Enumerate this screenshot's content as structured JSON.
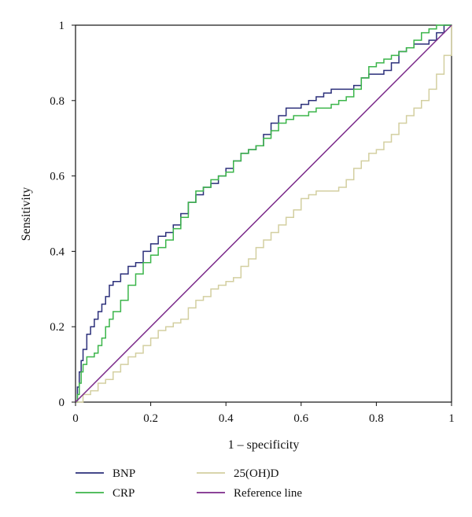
{
  "chart_data": {
    "type": "line",
    "title": "",
    "xlabel": "1 – specificity",
    "ylabel": "Sensitivity",
    "xlim": [
      0,
      1
    ],
    "ylim": [
      0,
      1
    ],
    "x_ticks": [
      "0",
      "0.2",
      "0.4",
      "0.6",
      "0.8",
      "1"
    ],
    "y_ticks": [
      "0",
      "0.2",
      "0.4",
      "0.6",
      "0.8",
      "1"
    ],
    "grid": false,
    "legend_position": "bottom",
    "series": [
      {
        "name": "BNP",
        "color": "#2b2f7a",
        "points": [
          [
            0,
            0
          ],
          [
            0.005,
            0.04
          ],
          [
            0.01,
            0.08
          ],
          [
            0.015,
            0.11
          ],
          [
            0.02,
            0.14
          ],
          [
            0.03,
            0.18
          ],
          [
            0.04,
            0.2
          ],
          [
            0.05,
            0.22
          ],
          [
            0.06,
            0.24
          ],
          [
            0.07,
            0.26
          ],
          [
            0.08,
            0.28
          ],
          [
            0.09,
            0.31
          ],
          [
            0.1,
            0.32
          ],
          [
            0.12,
            0.34
          ],
          [
            0.14,
            0.36
          ],
          [
            0.16,
            0.37
          ],
          [
            0.18,
            0.4
          ],
          [
            0.2,
            0.42
          ],
          [
            0.22,
            0.44
          ],
          [
            0.24,
            0.45
          ],
          [
            0.26,
            0.47
          ],
          [
            0.28,
            0.5
          ],
          [
            0.3,
            0.53
          ],
          [
            0.32,
            0.55
          ],
          [
            0.34,
            0.57
          ],
          [
            0.36,
            0.58
          ],
          [
            0.38,
            0.6
          ],
          [
            0.4,
            0.62
          ],
          [
            0.42,
            0.64
          ],
          [
            0.44,
            0.66
          ],
          [
            0.46,
            0.67
          ],
          [
            0.48,
            0.68
          ],
          [
            0.5,
            0.71
          ],
          [
            0.52,
            0.74
          ],
          [
            0.54,
            0.76
          ],
          [
            0.56,
            0.78
          ],
          [
            0.58,
            0.78
          ],
          [
            0.6,
            0.79
          ],
          [
            0.62,
            0.8
          ],
          [
            0.64,
            0.81
          ],
          [
            0.66,
            0.82
          ],
          [
            0.68,
            0.83
          ],
          [
            0.7,
            0.83
          ],
          [
            0.72,
            0.83
          ],
          [
            0.74,
            0.84
          ],
          [
            0.76,
            0.86
          ],
          [
            0.78,
            0.87
          ],
          [
            0.8,
            0.87
          ],
          [
            0.82,
            0.88
          ],
          [
            0.84,
            0.9
          ],
          [
            0.86,
            0.93
          ],
          [
            0.88,
            0.94
          ],
          [
            0.9,
            0.95
          ],
          [
            0.92,
            0.95
          ],
          [
            0.94,
            0.96
          ],
          [
            0.96,
            0.98
          ],
          [
            0.98,
            1
          ],
          [
            1,
            1
          ]
        ]
      },
      {
        "name": "CRP",
        "color": "#3bb54a",
        "points": [
          [
            0,
            0
          ],
          [
            0.005,
            0.02
          ],
          [
            0.01,
            0.05
          ],
          [
            0.015,
            0.08
          ],
          [
            0.02,
            0.1
          ],
          [
            0.03,
            0.12
          ],
          [
            0.05,
            0.13
          ],
          [
            0.06,
            0.15
          ],
          [
            0.07,
            0.17
          ],
          [
            0.08,
            0.2
          ],
          [
            0.09,
            0.22
          ],
          [
            0.1,
            0.24
          ],
          [
            0.12,
            0.27
          ],
          [
            0.14,
            0.31
          ],
          [
            0.16,
            0.34
          ],
          [
            0.18,
            0.37
          ],
          [
            0.2,
            0.39
          ],
          [
            0.22,
            0.41
          ],
          [
            0.24,
            0.43
          ],
          [
            0.26,
            0.46
          ],
          [
            0.28,
            0.49
          ],
          [
            0.3,
            0.53
          ],
          [
            0.32,
            0.56
          ],
          [
            0.34,
            0.57
          ],
          [
            0.36,
            0.59
          ],
          [
            0.38,
            0.6
          ],
          [
            0.4,
            0.61
          ],
          [
            0.42,
            0.64
          ],
          [
            0.44,
            0.66
          ],
          [
            0.46,
            0.67
          ],
          [
            0.48,
            0.68
          ],
          [
            0.5,
            0.7
          ],
          [
            0.52,
            0.72
          ],
          [
            0.54,
            0.74
          ],
          [
            0.56,
            0.75
          ],
          [
            0.58,
            0.76
          ],
          [
            0.6,
            0.76
          ],
          [
            0.62,
            0.77
          ],
          [
            0.64,
            0.78
          ],
          [
            0.66,
            0.78
          ],
          [
            0.68,
            0.79
          ],
          [
            0.7,
            0.8
          ],
          [
            0.72,
            0.81
          ],
          [
            0.74,
            0.83
          ],
          [
            0.76,
            0.86
          ],
          [
            0.78,
            0.89
          ],
          [
            0.8,
            0.9
          ],
          [
            0.82,
            0.91
          ],
          [
            0.84,
            0.92
          ],
          [
            0.86,
            0.93
          ],
          [
            0.88,
            0.94
          ],
          [
            0.9,
            0.96
          ],
          [
            0.92,
            0.98
          ],
          [
            0.94,
            0.99
          ],
          [
            0.96,
            1
          ],
          [
            1,
            1
          ]
        ]
      },
      {
        "name": "25(OH)D",
        "color": "#d3cfa0",
        "points": [
          [
            0,
            0
          ],
          [
            0.02,
            0.02
          ],
          [
            0.04,
            0.03
          ],
          [
            0.06,
            0.05
          ],
          [
            0.08,
            0.06
          ],
          [
            0.1,
            0.08
          ],
          [
            0.12,
            0.1
          ],
          [
            0.14,
            0.12
          ],
          [
            0.16,
            0.13
          ],
          [
            0.18,
            0.15
          ],
          [
            0.2,
            0.17
          ],
          [
            0.22,
            0.19
          ],
          [
            0.24,
            0.2
          ],
          [
            0.26,
            0.21
          ],
          [
            0.28,
            0.22
          ],
          [
            0.3,
            0.25
          ],
          [
            0.32,
            0.27
          ],
          [
            0.34,
            0.28
          ],
          [
            0.36,
            0.3
          ],
          [
            0.38,
            0.31
          ],
          [
            0.4,
            0.32
          ],
          [
            0.42,
            0.33
          ],
          [
            0.44,
            0.36
          ],
          [
            0.46,
            0.38
          ],
          [
            0.48,
            0.41
          ],
          [
            0.5,
            0.43
          ],
          [
            0.52,
            0.45
          ],
          [
            0.54,
            0.47
          ],
          [
            0.56,
            0.49
          ],
          [
            0.58,
            0.51
          ],
          [
            0.6,
            0.54
          ],
          [
            0.62,
            0.55
          ],
          [
            0.64,
            0.56
          ],
          [
            0.66,
            0.56
          ],
          [
            0.68,
            0.56
          ],
          [
            0.7,
            0.57
          ],
          [
            0.72,
            0.59
          ],
          [
            0.74,
            0.62
          ],
          [
            0.76,
            0.64
          ],
          [
            0.78,
            0.66
          ],
          [
            0.8,
            0.67
          ],
          [
            0.82,
            0.69
          ],
          [
            0.84,
            0.71
          ],
          [
            0.86,
            0.74
          ],
          [
            0.88,
            0.76
          ],
          [
            0.9,
            0.78
          ],
          [
            0.92,
            0.8
          ],
          [
            0.94,
            0.83
          ],
          [
            0.96,
            0.87
          ],
          [
            0.98,
            0.92
          ],
          [
            1,
            1
          ]
        ]
      },
      {
        "name": "Reference line",
        "color": "#7b2a8a",
        "points": [
          [
            0,
            0
          ],
          [
            1,
            1
          ]
        ]
      }
    ]
  }
}
